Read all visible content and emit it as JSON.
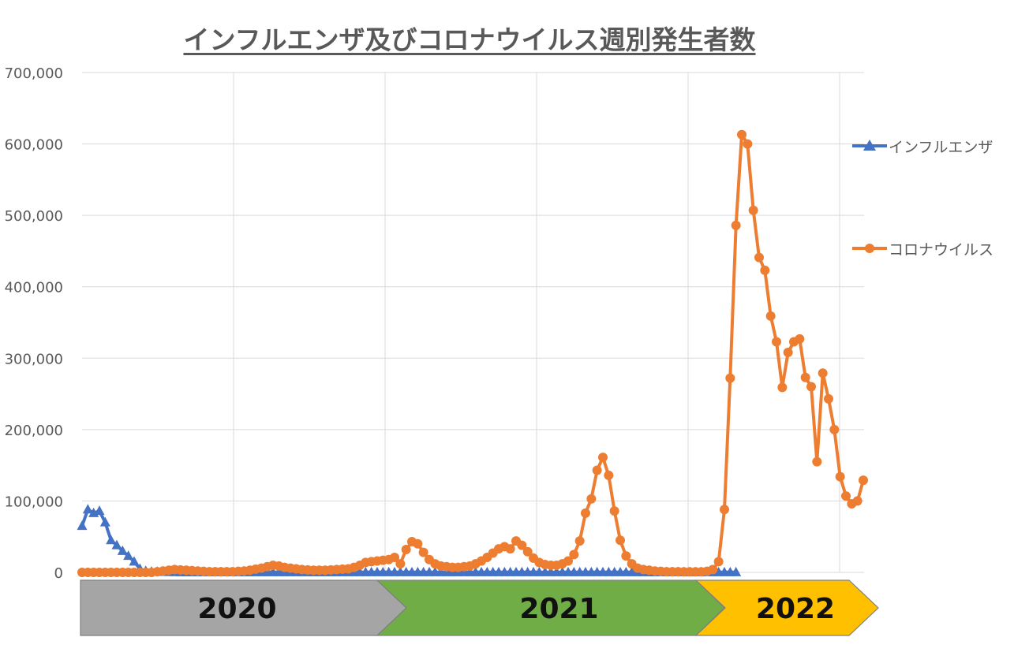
{
  "chart_data": {
    "type": "line",
    "title": "インフルエンザ及びコロナウイルス週別発生者数",
    "ylim": [
      0,
      700000
    ],
    "yticks": [
      0,
      100000,
      200000,
      300000,
      400000,
      500000,
      600000,
      700000
    ],
    "ytick_labels": [
      "0",
      "100,000",
      "200,000",
      "300,000",
      "400,000",
      "500,000",
      "600,000",
      "700,000"
    ],
    "grid": true,
    "legend_position": "right",
    "year_bands": [
      {
        "label": "2020",
        "color": "#a5a5a5"
      },
      {
        "label": "2021",
        "color": "#70ad47"
      },
      {
        "label": "2022",
        "color": "#ffc000"
      }
    ],
    "series": [
      {
        "name": "インフルエンザ",
        "color": "#4472c4",
        "marker": "triangle",
        "values": [
          65000,
          88000,
          83000,
          86000,
          70000,
          45000,
          38000,
          30000,
          23000,
          15000,
          5000,
          2000,
          1000,
          800,
          500,
          400,
          300,
          200,
          200,
          200,
          200,
          200,
          200,
          200,
          200,
          200,
          200,
          200,
          200,
          200,
          200,
          200,
          200,
          200,
          200,
          200,
          200,
          200,
          200,
          200,
          200,
          200,
          200,
          200,
          200,
          200,
          200,
          200,
          200,
          200,
          200,
          200,
          200,
          200,
          200,
          200,
          200,
          200,
          200,
          200,
          200,
          200,
          200,
          200,
          200,
          200,
          200,
          200,
          200,
          200,
          200,
          200,
          200,
          200,
          200,
          200,
          200,
          200,
          200,
          200,
          200,
          200,
          200,
          200,
          200,
          200,
          200,
          200,
          200,
          200,
          200,
          200,
          200,
          200,
          200,
          200,
          200,
          200,
          200,
          200,
          200,
          200,
          200,
          200,
          200,
          200,
          200,
          200,
          200,
          200,
          200,
          200,
          200,
          200
        ]
      },
      {
        "name": "コロナウイルス",
        "color": "#ed7d31",
        "marker": "circle",
        "values": [
          0,
          0,
          0,
          0,
          0,
          0,
          0,
          0,
          0,
          0,
          0,
          0,
          0,
          1000,
          2000,
          3000,
          4000,
          3500,
          3000,
          2500,
          2000,
          1500,
          1000,
          1000,
          1000,
          1000,
          1000,
          1500,
          2000,
          3000,
          4500,
          6000,
          8000,
          10000,
          9000,
          7000,
          6000,
          5000,
          4000,
          3500,
          3000,
          3000,
          3000,
          3500,
          4000,
          4500,
          5000,
          7000,
          10000,
          14000,
          15000,
          16000,
          17000,
          18000,
          21000,
          12000,
          32000,
          43000,
          40000,
          28000,
          18000,
          12000,
          9000,
          8000,
          7000,
          7000,
          8000,
          9000,
          12000,
          16000,
          21000,
          27000,
          33000,
          36000,
          33000,
          44000,
          38000,
          29000,
          20000,
          14000,
          11000,
          10000,
          10000,
          12000,
          16000,
          25000,
          44000,
          83000,
          103000,
          143000,
          161000,
          136000,
          86000,
          45000,
          23000,
          12000,
          6000,
          4000,
          3000,
          2000,
          1500,
          1000,
          1000,
          1000,
          800,
          800,
          800,
          800,
          1500,
          4000,
          15000,
          88000,
          272000,
          486000,
          613000,
          600000,
          507000,
          441000,
          423000,
          359000,
          323000,
          259000,
          308000,
          323000,
          327000,
          273000,
          260000,
          155000,
          279000,
          243000,
          200000,
          134000,
          107000,
          96000,
          100000,
          129000
        ]
      }
    ]
  }
}
